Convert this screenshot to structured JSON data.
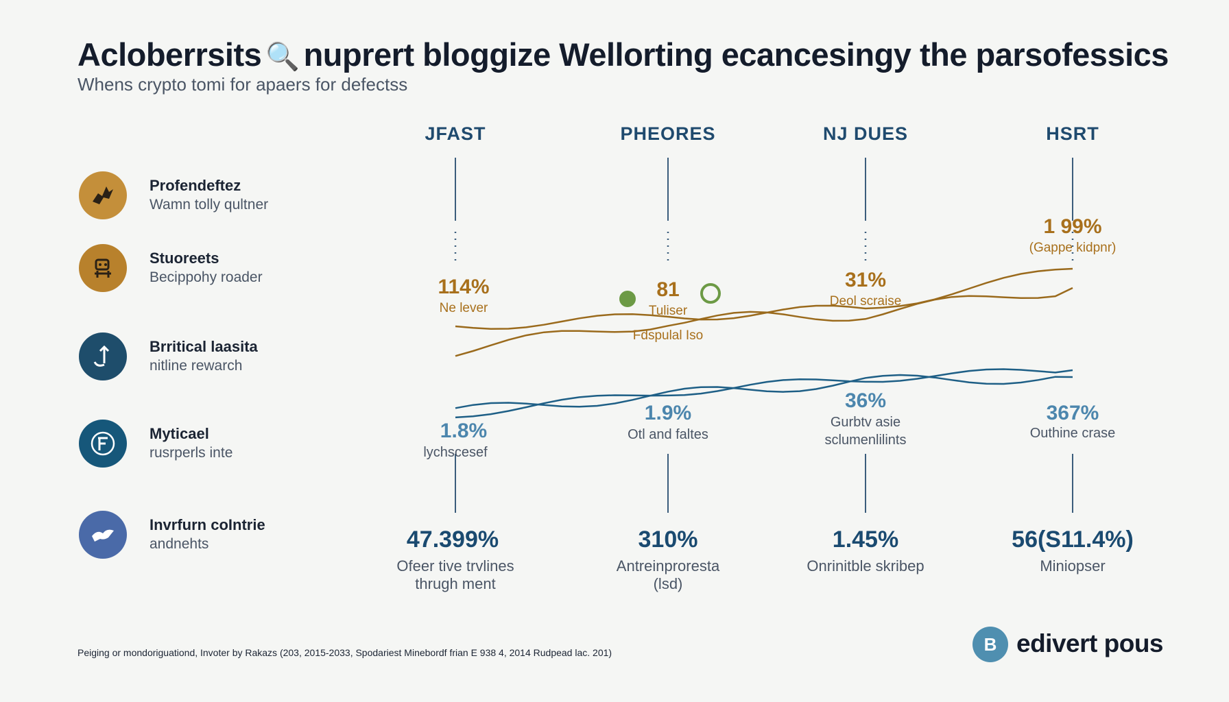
{
  "title": "Acloberrsits",
  "title_rest": "nuprert bloggize Wellorting ecancesingy the parsofessics",
  "title_icon": "magnifier-chart-icon",
  "subtitle": "Whens crypto tomi for apaers for defectss",
  "legend": [
    {
      "name": "Profendeftez",
      "desc": "Wamn tolly qultner",
      "icon": "dragon-icon",
      "color": "#c48f3a"
    },
    {
      "name": "Stuoreets",
      "desc": "Becippohy roader",
      "icon": "robot-icon",
      "color": "#b8812c"
    },
    {
      "name": "Brritical laasita",
      "desc": "nitline rewarch",
      "icon": "arrow-up-icon",
      "color": "#1e4d6b"
    },
    {
      "name": "Myticael",
      "desc": "rusrperls inte",
      "icon": "emblem-icon",
      "color": "#16577a"
    },
    {
      "name": "Invrfurn coIntrie",
      "desc": "andnehts",
      "icon": "hands-icon",
      "color": "#4a6aa8"
    }
  ],
  "chart_data": {
    "type": "line",
    "categories": [
      "JFAST",
      "PHEORES",
      "NJ DUES",
      "HSRT"
    ],
    "series": [
      {
        "color": "#9a6a1c",
        "values": [
          114,
          81,
          31,
          199
        ],
        "value_labels": [
          "114%",
          "81",
          "31%",
          "1 99%"
        ],
        "point_labels": [
          "Ne lever",
          "Tuliser",
          "Deol scraise",
          "(Gappe kidpnr)"
        ]
      },
      {
        "color": "#1e5f86",
        "values": [
          1.8,
          1.9,
          36,
          367
        ],
        "value_labels": [
          "1.8%",
          "1.9%",
          "36%",
          "367%"
        ],
        "point_labels": [
          "lychscesef",
          "Otl and faltes",
          "Gurbtv asie sclumenlilints",
          "Outhine crase"
        ]
      }
    ],
    "annotation": "Fdspulal Iso",
    "bottom_values": [
      "47.399%",
      "310%",
      "1.45%",
      "56(S11.4%)"
    ],
    "bottom_labels": [
      "Ofeer tive trvlines thrugh ment",
      "Antreinproresta (lsd)",
      "Onrinitble skribep",
      "Miniopser"
    ]
  },
  "source": "Peiging or mondoriguationd, Invoter by Rakazs (203, 2015-2033, Spodariest Minebordf frian E 938 4, 2014 Rudpead lac. 201)",
  "brand": {
    "name": "edivert pous",
    "icon_glyph": "B",
    "icon": "bitcoin-b-icon"
  },
  "colors": {
    "gold": "#a8701c",
    "blue": "#1e5f86",
    "header": "#1f4a6e"
  }
}
